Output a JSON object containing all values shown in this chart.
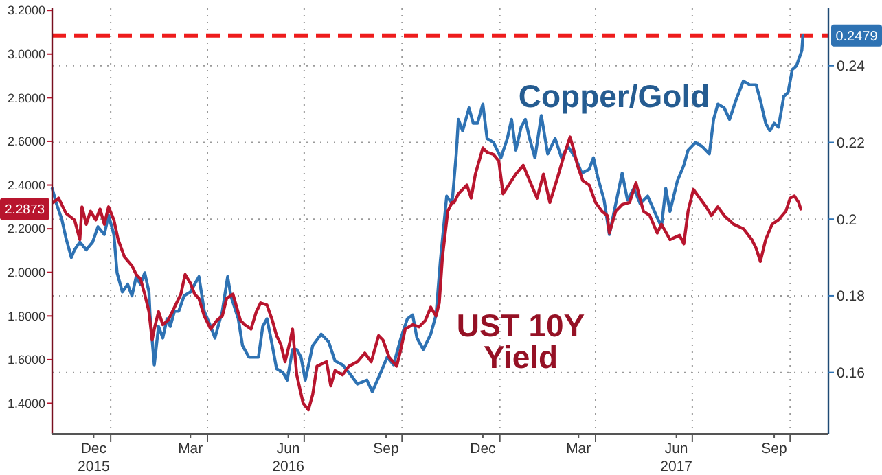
{
  "chart_data": {
    "type": "line",
    "legend": false,
    "grid": true,
    "marker": "none",
    "line_style": "solid",
    "xlim": [
      "2015-11-07",
      "2017-11-06"
    ],
    "xticks": [
      {
        "value": "2015-12-16",
        "label": "Dec\n2015"
      },
      {
        "value": "2016-01-01",
        "label": null
      },
      {
        "value": "2016-03-16",
        "label": "Mar"
      },
      {
        "value": "2016-04-01",
        "label": null
      },
      {
        "value": "2016-06-16",
        "label": "Jun\n2016"
      },
      {
        "value": "2016-07-01",
        "label": null
      },
      {
        "value": "2016-09-16",
        "label": "Sep"
      },
      {
        "value": "2016-10-01",
        "label": null
      },
      {
        "value": "2016-12-16",
        "label": "Dec"
      },
      {
        "value": "2017-01-01",
        "label": null
      },
      {
        "value": "2017-03-16",
        "label": "Mar"
      },
      {
        "value": "2017-04-01",
        "label": null
      },
      {
        "value": "2017-06-16",
        "label": "Jun\n2017"
      },
      {
        "value": "2017-07-01",
        "label": null
      },
      {
        "value": "2017-09-16",
        "label": "Sep"
      },
      {
        "value": "2017-10-01",
        "label": null
      }
    ],
    "ylim": [
      1.26,
      3.21
    ],
    "yticks": [
      {
        "value": 1.4,
        "label": "1.4000"
      },
      {
        "value": 1.6,
        "label": "1.6000"
      },
      {
        "value": 1.8,
        "label": "1.8000"
      },
      {
        "value": 2.0,
        "label": "2.0000"
      },
      {
        "value": 2.2,
        "label": "2.2000"
      },
      {
        "value": 2.4,
        "label": "2.4000"
      },
      {
        "value": 2.6,
        "label": "2.6000"
      },
      {
        "value": 2.8,
        "label": "2.8000"
      },
      {
        "value": 3.0,
        "label": "3.0000"
      },
      {
        "value": 3.2,
        "label": "3.2000"
      }
    ],
    "y2lim": [
      0.144,
      0.255
    ],
    "y2ticks": [
      0.16,
      0.18,
      0.2,
      0.22,
      0.24
    ],
    "ref_lines": [
      {
        "axis": "y2",
        "value": 0.2479,
        "label": "0.2479",
        "color": "#ee1c1c",
        "line_style": "dashed"
      }
    ],
    "annotations": [
      "2.2873"
    ],
    "series": [
      {
        "name": "Copper/Gold",
        "color": "#2e72b3",
        "axis": "y2",
        "x": [
          "2015-11-07",
          "2015-11-11",
          "2015-11-16",
          "2015-11-20",
          "2015-11-25",
          "2015-11-28",
          "2015-12-03",
          "2015-12-09",
          "2015-12-15",
          "2015-12-20",
          "2015-12-26",
          "2015-12-30",
          "2016-01-04",
          "2016-01-07",
          "2016-01-12",
          "2016-01-17",
          "2016-01-21",
          "2016-01-25",
          "2016-01-29",
          "2016-02-02",
          "2016-02-06",
          "2016-02-07",
          "2016-02-11",
          "2016-02-13",
          "2016-02-15",
          "2016-02-19",
          "2016-02-23",
          "2016-02-26",
          "2016-03-01",
          "2016-03-05",
          "2016-03-10",
          "2016-03-16",
          "2016-03-20",
          "2016-03-24",
          "2016-03-29",
          "2016-04-04",
          "2016-04-08",
          "2016-04-15",
          "2016-04-20",
          "2016-04-23",
          "2016-04-30",
          "2016-05-04",
          "2016-05-10",
          "2016-05-19",
          "2016-05-23",
          "2016-05-27",
          "2016-06-01",
          "2016-06-05",
          "2016-06-11",
          "2016-06-15",
          "2016-06-20",
          "2016-06-24",
          "2016-06-28",
          "2016-07-02",
          "2016-07-09",
          "2016-07-17",
          "2016-07-24",
          "2016-07-30",
          "2016-08-06",
          "2016-08-12",
          "2016-08-20",
          "2016-08-29",
          "2016-09-03",
          "2016-09-11",
          "2016-09-17",
          "2016-09-23",
          "2016-09-30",
          "2016-10-06",
          "2016-10-11",
          "2016-10-15",
          "2016-10-21",
          "2016-10-28",
          "2016-11-02",
          "2016-11-06",
          "2016-11-12",
          "2016-11-17",
          "2016-11-21",
          "2016-11-23",
          "2016-11-27",
          "2016-12-03",
          "2016-12-07",
          "2016-12-11",
          "2016-12-16",
          "2016-12-20",
          "2016-12-26",
          "2017-01-02",
          "2017-01-08",
          "2017-01-12",
          "2017-01-16",
          "2017-01-21",
          "2017-01-25",
          "2017-01-29",
          "2017-02-03",
          "2017-02-09",
          "2017-02-15",
          "2017-02-22",
          "2017-02-28",
          "2017-03-06",
          "2017-03-13",
          "2017-03-19",
          "2017-03-26",
          "2017-03-30",
          "2017-04-03",
          "2017-04-09",
          "2017-04-14",
          "2017-04-20",
          "2017-04-26",
          "2017-05-01",
          "2017-05-07",
          "2017-05-13",
          "2017-05-20",
          "2017-05-28",
          "2017-06-02",
          "2017-06-06",
          "2017-06-10",
          "2017-06-17",
          "2017-06-23",
          "2017-06-27",
          "2017-07-04",
          "2017-07-10",
          "2017-07-17",
          "2017-07-21",
          "2017-07-25",
          "2017-07-31",
          "2017-08-05",
          "2017-08-11",
          "2017-08-18",
          "2017-08-24",
          "2017-08-30",
          "2017-09-03",
          "2017-09-08",
          "2017-09-12",
          "2017-09-16",
          "2017-09-20",
          "2017-09-25",
          "2017-09-29",
          "2017-10-03",
          "2017-10-07",
          "2017-10-12",
          "2017-10-13"
        ],
        "values": [
          0.208,
          0.204,
          0.2,
          0.195,
          0.19,
          0.192,
          0.194,
          0.192,
          0.194,
          0.198,
          0.196,
          0.201,
          0.196,
          0.186,
          0.181,
          0.183,
          0.18,
          0.185,
          0.183,
          0.186,
          0.181,
          0.175,
          0.162,
          0.167,
          0.172,
          0.169,
          0.174,
          0.172,
          0.176,
          0.176,
          0.18,
          0.181,
          0.183,
          0.185,
          0.176,
          0.172,
          0.169,
          0.176,
          0.185,
          0.18,
          0.174,
          0.167,
          0.164,
          0.164,
          0.172,
          0.174,
          0.167,
          0.161,
          0.16,
          0.158,
          0.166,
          0.166,
          0.164,
          0.158,
          0.167,
          0.17,
          0.168,
          0.163,
          0.162,
          0.16,
          0.157,
          0.158,
          0.155,
          0.16,
          0.164,
          0.162,
          0.169,
          0.174,
          0.175,
          0.169,
          0.166,
          0.17,
          0.175,
          0.189,
          0.206,
          0.204,
          0.217,
          0.226,
          0.223,
          0.229,
          0.225,
          0.225,
          0.23,
          0.221,
          0.22,
          0.216,
          0.221,
          0.226,
          0.218,
          0.224,
          0.226,
          0.221,
          0.216,
          0.227,
          0.217,
          0.221,
          0.216,
          0.219,
          0.216,
          0.212,
          0.213,
          0.216,
          0.211,
          0.205,
          0.196,
          0.204,
          0.212,
          0.205,
          0.208,
          0.204,
          0.206,
          0.201,
          0.198,
          0.208,
          0.202,
          0.21,
          0.214,
          0.218,
          0.22,
          0.219,
          0.217,
          0.226,
          0.23,
          0.229,
          0.226,
          0.231,
          0.236,
          0.235,
          0.235,
          0.231,
          0.225,
          0.223,
          0.225,
          0.224,
          0.232,
          0.233,
          0.239,
          0.24,
          0.244,
          0.2479
        ]
      },
      {
        "name": "UST 10Y Yield",
        "color": "#b8152e",
        "x": [
          "2015-11-08",
          "2015-11-13",
          "2015-11-20",
          "2015-11-28",
          "2015-12-03",
          "2015-12-05",
          "2015-12-09",
          "2015-12-13",
          "2015-12-18",
          "2015-12-22",
          "2015-12-26",
          "2015-12-30",
          "2016-01-04",
          "2016-01-08",
          "2016-01-14",
          "2016-01-21",
          "2016-01-25",
          "2016-01-29",
          "2016-02-02",
          "2016-02-06",
          "2016-02-09",
          "2016-02-11",
          "2016-02-15",
          "2016-02-19",
          "2016-02-24",
          "2016-02-28",
          "2016-03-03",
          "2016-03-07",
          "2016-03-11",
          "2016-03-16",
          "2016-03-20",
          "2016-03-24",
          "2016-03-29",
          "2016-04-04",
          "2016-04-10",
          "2016-04-15",
          "2016-04-19",
          "2016-04-25",
          "2016-05-02",
          "2016-05-06",
          "2016-05-12",
          "2016-05-17",
          "2016-05-21",
          "2016-05-27",
          "2016-06-01",
          "2016-06-05",
          "2016-06-09",
          "2016-06-13",
          "2016-06-18",
          "2016-06-20",
          "2016-06-24",
          "2016-06-30",
          "2016-07-05",
          "2016-07-09",
          "2016-07-13",
          "2016-07-22",
          "2016-07-26",
          "2016-07-30",
          "2016-08-06",
          "2016-08-12",
          "2016-08-20",
          "2016-08-27",
          "2016-09-02",
          "2016-09-09",
          "2016-09-13",
          "2016-09-19",
          "2016-09-26",
          "2016-09-30",
          "2016-10-04",
          "2016-10-11",
          "2016-10-17",
          "2016-10-23",
          "2016-10-28",
          "2016-11-02",
          "2016-11-05",
          "2016-11-08",
          "2016-11-13",
          "2016-11-17",
          "2016-11-19",
          "2016-11-23",
          "2016-12-01",
          "2016-12-05",
          "2016-12-09",
          "2016-12-16",
          "2016-12-20",
          "2016-12-26",
          "2016-12-31",
          "2017-01-04",
          "2017-01-08",
          "2017-01-16",
          "2017-01-23",
          "2017-01-29",
          "2017-02-05",
          "2017-02-11",
          "2017-02-17",
          "2017-02-24",
          "2017-03-02",
          "2017-03-08",
          "2017-03-11",
          "2017-03-15",
          "2017-03-20",
          "2017-03-26",
          "2017-04-01",
          "2017-04-07",
          "2017-04-12",
          "2017-04-14",
          "2017-04-20",
          "2017-04-26",
          "2017-05-03",
          "2017-05-09",
          "2017-05-16",
          "2017-05-22",
          "2017-05-29",
          "2017-06-02",
          "2017-06-10",
          "2017-06-19",
          "2017-06-23",
          "2017-06-27",
          "2017-07-02",
          "2017-07-08",
          "2017-07-14",
          "2017-07-19",
          "2017-07-25",
          "2017-07-31",
          "2017-08-09",
          "2017-08-18",
          "2017-08-26",
          "2017-08-30",
          "2017-09-03",
          "2017-09-08",
          "2017-09-14",
          "2017-09-20",
          "2017-09-27",
          "2017-10-01",
          "2017-10-05",
          "2017-10-09",
          "2017-10-11"
        ],
        "values": [
          2.32,
          2.34,
          2.27,
          2.24,
          2.15,
          2.3,
          2.22,
          2.28,
          2.24,
          2.29,
          2.22,
          2.3,
          2.24,
          2.15,
          2.07,
          2.03,
          1.99,
          1.97,
          1.9,
          1.82,
          1.69,
          1.74,
          1.82,
          1.76,
          1.78,
          1.82,
          1.86,
          1.9,
          1.99,
          1.95,
          1.9,
          1.88,
          1.8,
          1.74,
          1.78,
          1.8,
          1.88,
          1.9,
          1.78,
          1.76,
          1.74,
          1.82,
          1.86,
          1.85,
          1.78,
          1.71,
          1.67,
          1.59,
          1.69,
          1.74,
          1.53,
          1.4,
          1.37,
          1.44,
          1.57,
          1.59,
          1.48,
          1.55,
          1.53,
          1.57,
          1.59,
          1.63,
          1.59,
          1.71,
          1.69,
          1.61,
          1.57,
          1.65,
          1.74,
          1.76,
          1.75,
          1.78,
          1.84,
          1.8,
          1.86,
          2.07,
          2.28,
          2.32,
          2.32,
          2.36,
          2.4,
          2.34,
          2.45,
          2.57,
          2.55,
          2.54,
          2.51,
          2.36,
          2.39,
          2.45,
          2.49,
          2.42,
          2.34,
          2.45,
          2.32,
          2.43,
          2.53,
          2.62,
          2.57,
          2.49,
          2.42,
          2.4,
          2.32,
          2.28,
          2.26,
          2.18,
          2.28,
          2.31,
          2.32,
          2.41,
          2.28,
          2.26,
          2.18,
          2.22,
          2.15,
          2.17,
          2.13,
          2.28,
          2.38,
          2.34,
          2.3,
          2.26,
          2.3,
          2.26,
          2.22,
          2.2,
          2.15,
          2.11,
          2.05,
          2.15,
          2.22,
          2.24,
          2.28,
          2.34,
          2.35,
          2.32,
          2.29
        ]
      }
    ]
  }
}
